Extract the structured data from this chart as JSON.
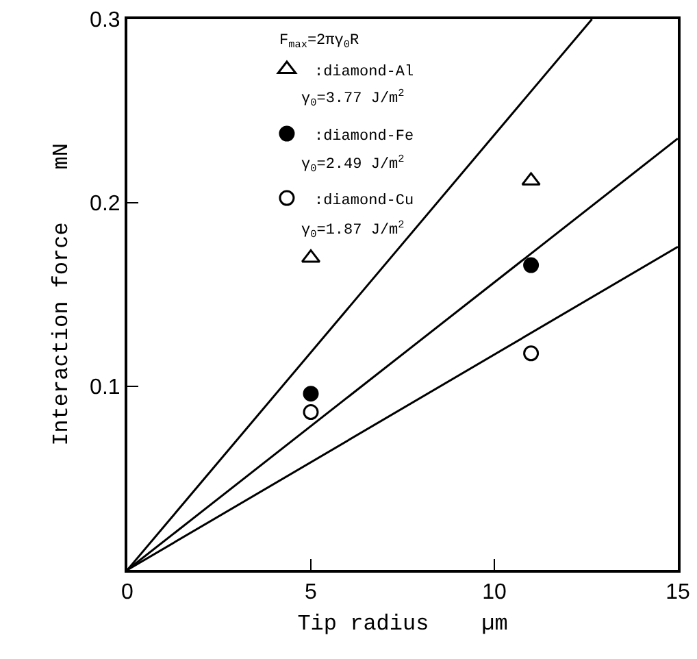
{
  "chart_data": {
    "type": "scatter",
    "xlabel": "Tip radius    µm",
    "ylabel": "Interaction force    mN",
    "xlim": [
      0,
      15
    ],
    "xticks": [
      0,
      5,
      10,
      15
    ],
    "ylim": [
      0,
      0.3
    ],
    "yticks": [
      0.1,
      0.2,
      0.3
    ],
    "grid": false,
    "legend": "top left",
    "annotations": [
      "F$_{max}$=2πγ$_{0}$R",
      "γ$_{0}$=3.77 J/m$^{2}$",
      "γ$_{0}$=2.49 J/m$^{2}$",
      "γ$_{0}$=1.87 J/m$^{2}$"
    ],
    "series": [
      {
        "name": ":diamond-Al",
        "marker": "triangle",
        "color": "#ffffff",
        "x": [
          5,
          11
        ],
        "values": [
          0.17,
          0.212
        ]
      },
      {
        "name": ":diamond-Fe",
        "marker": "circle",
        "color": "#000000",
        "x": [
          5,
          11
        ],
        "values": [
          0.096,
          0.166
        ]
      },
      {
        "name": ":diamond-Cu",
        "marker": "circle",
        "color": "#ffffff",
        "x": [
          5,
          11
        ],
        "values": [
          0.086,
          0.118
        ]
      },
      {
        "type": "line",
        "color": "#000000",
        "x": [
          0,
          12.66
        ],
        "values": [
          0,
          0.3
        ]
      },
      {
        "type": "line",
        "color": "#000000",
        "x": [
          0,
          15
        ],
        "values": [
          0,
          0.235
        ]
      },
      {
        "type": "line",
        "color": "#000000",
        "x": [
          0,
          15
        ],
        "values": [
          0,
          0.176
        ]
      }
    ]
  }
}
